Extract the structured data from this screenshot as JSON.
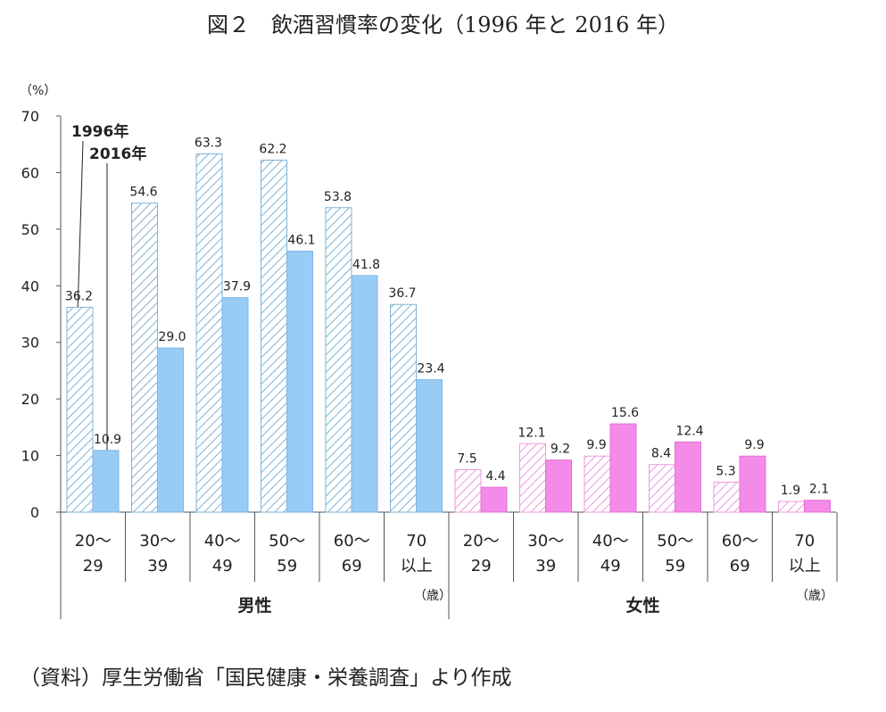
{
  "title": "図２　飲酒習慣率の変化（1996 年と 2016 年）",
  "source": "（資料）厚生労働省「国民健康・栄養調査」より作成",
  "colors": {
    "male_1996_stripe": "#7fb3d6",
    "male_2016": "#99ccf5",
    "female_1996_stripe": "#ee99dd",
    "female_2016": "#f58be8",
    "axis": "#555555"
  },
  "chart_data": {
    "type": "bar",
    "y_unit": "（%）",
    "ylim": [
      0,
      70
    ],
    "yticks": [
      "0",
      "10",
      "20",
      "30",
      "40",
      "50",
      "60",
      "70"
    ],
    "series_names": [
      "1996年",
      "2016年"
    ],
    "age_unit": "（歳）",
    "groups": [
      {
        "name": "男性",
        "categories": [
          [
            "20～",
            "29"
          ],
          [
            "30～",
            "39"
          ],
          [
            "40～",
            "49"
          ],
          [
            "50～",
            "59"
          ],
          [
            "60～",
            "69"
          ],
          [
            "70",
            "以上"
          ]
        ],
        "series": [
          {
            "name": "1996年",
            "values": [
              36.2,
              54.6,
              63.3,
              62.2,
              53.8,
              36.7
            ],
            "labels": [
              "36.2",
              "54.6",
              "63.3",
              "62.2",
              "53.8",
              "36.7"
            ]
          },
          {
            "name": "2016年",
            "values": [
              10.9,
              29.0,
              37.9,
              46.1,
              41.8,
              23.4
            ],
            "labels": [
              "10.9",
              "29.0",
              "37.9",
              "46.1",
              "41.8",
              "23.4"
            ]
          }
        ]
      },
      {
        "name": "女性",
        "categories": [
          [
            "20～",
            "29"
          ],
          [
            "30～",
            "39"
          ],
          [
            "40～",
            "49"
          ],
          [
            "50～",
            "59"
          ],
          [
            "60～",
            "69"
          ],
          [
            "70",
            "以上"
          ]
        ],
        "series": [
          {
            "name": "1996年",
            "values": [
              7.5,
              12.1,
              9.9,
              8.4,
              5.3,
              1.9
            ],
            "labels": [
              "7.5",
              "12.1",
              "9.9",
              "8.4",
              "5.3",
              "1.9"
            ]
          },
          {
            "name": "2016年",
            "values": [
              4.4,
              9.2,
              15.6,
              12.4,
              9.9,
              2.1
            ],
            "labels": [
              "4.4",
              "9.2",
              "15.6",
              "12.4",
              "9.9",
              "2.1"
            ]
          }
        ]
      }
    ]
  }
}
